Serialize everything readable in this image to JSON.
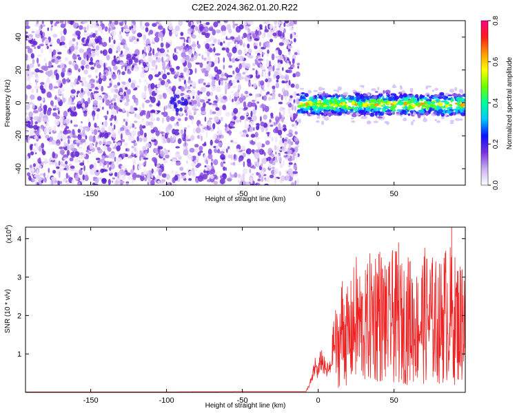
{
  "title": "C2E2.2024.362.01.20.R22",
  "chart_data": [
    {
      "type": "heatmap",
      "name": "spectrogram",
      "xlabel": "Height of straight line (km)",
      "ylabel": "Frequency (Hz)",
      "xlim": [
        -193,
        97
      ],
      "ylim": [
        -50,
        50
      ],
      "xticks": [
        -150,
        -100,
        -50,
        0,
        50
      ],
      "xtick_labels": [
        "-150",
        "-100",
        "-50",
        "0",
        "50"
      ],
      "yticks": [
        -40,
        -20,
        0,
        20,
        40
      ],
      "ytick_labels": [
        "-40",
        "-20",
        "0",
        "20",
        "40"
      ],
      "noise_region_x": [
        -193,
        -13
      ],
      "signal_region_x": [
        -13,
        97
      ],
      "signal_band_hz": [
        -8,
        6
      ],
      "colorbar": {
        "label": "Normalized spectral amplitude",
        "range": [
          0.0,
          0.8
        ],
        "ticks": [
          0.0,
          0.2,
          0.4,
          0.6,
          0.8
        ],
        "tick_labels": [
          "0.0",
          "0.2",
          "0.4",
          "0.6",
          "0.8"
        ],
        "colors": [
          "#ffffff",
          "#c9b0f0",
          "#7a2fe0",
          "#0a10ff",
          "#00c8ff",
          "#00ff9a",
          "#6aff00",
          "#ffff00",
          "#ff9a00",
          "#ff1a1a",
          "#ff0080"
        ]
      }
    },
    {
      "type": "line",
      "name": "snr",
      "xlabel": "Height of straight line (km)",
      "ylabel": "SNR (10 * v/v)",
      "y_multiplier_label": "(x10",
      "y_multiplier_exp": "4",
      "y_multiplier_close": ")",
      "xlim": [
        -193,
        97
      ],
      "ylim": [
        0,
        4.3
      ],
      "xticks": [
        -150,
        -100,
        -50,
        0,
        50
      ],
      "xtick_labels": [
        "-150",
        "-100",
        "-50",
        "0",
        "50"
      ],
      "yticks": [
        1,
        2,
        3,
        4
      ],
      "ytick_labels": [
        "1",
        "2",
        "3",
        "4"
      ],
      "color": "#ee2222",
      "series": [
        {
          "x": -193,
          "y": 0.01
        },
        {
          "x": -150,
          "y": 0.01
        },
        {
          "x": -100,
          "y": 0.01
        },
        {
          "x": -50,
          "y": 0.02
        },
        {
          "x": -8,
          "y": 0.02
        },
        {
          "x": -4,
          "y": 0.35
        },
        {
          "x": -2,
          "y": 0.7
        },
        {
          "x": 0,
          "y": 0.5
        },
        {
          "x": 2,
          "y": 0.9
        },
        {
          "x": 5,
          "y": 0.55
        },
        {
          "x": 8,
          "y": 0.6
        },
        {
          "x": 10,
          "y": 1.3
        },
        {
          "x": 13,
          "y": 1.1
        },
        {
          "x": 16,
          "y": 1.7
        },
        {
          "x": 20,
          "y": 1.4
        },
        {
          "x": 25,
          "y": 1.9
        },
        {
          "x": 30,
          "y": 1.6
        },
        {
          "x": 35,
          "y": 2.0
        },
        {
          "x": 40,
          "y": 2.1
        },
        {
          "x": 45,
          "y": 1.7
        },
        {
          "x": 50,
          "y": 2.0
        },
        {
          "x": 55,
          "y": 1.8
        },
        {
          "x": 60,
          "y": 1.9
        },
        {
          "x": 65,
          "y": 1.7
        },
        {
          "x": 70,
          "y": 2.0
        },
        {
          "x": 75,
          "y": 1.9
        },
        {
          "x": 80,
          "y": 1.8
        },
        {
          "x": 85,
          "y": 2.1
        },
        {
          "x": 90,
          "y": 1.9
        },
        {
          "x": 97,
          "y": 1.8
        }
      ],
      "peaks": [
        {
          "x": 40,
          "y": 3.6
        },
        {
          "x": 44,
          "y": 3.3
        },
        {
          "x": 49,
          "y": 3.7
        },
        {
          "x": 53,
          "y": 3.9
        },
        {
          "x": 60,
          "y": 3.4
        },
        {
          "x": 75,
          "y": 3.3
        },
        {
          "x": 83,
          "y": 3.5
        },
        {
          "x": 88,
          "y": 4.3
        },
        {
          "x": 95,
          "y": 3.2
        }
      ]
    }
  ]
}
